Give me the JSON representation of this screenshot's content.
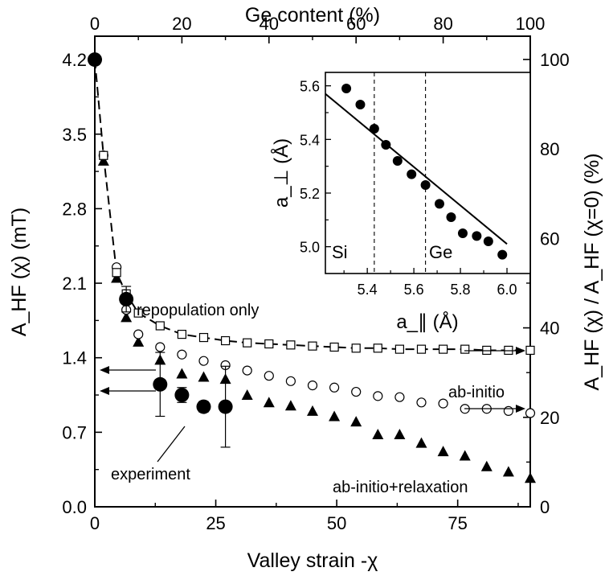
{
  "chart_data": [
    {
      "type": "scatter",
      "xlabel": "Valley strain -χ",
      "x2label": "Ge content (%)",
      "ylabel": "A_HF (χ) (mT)",
      "y2label": "A_HF (χ) / A_HF (χ=0) (%)",
      "xlim": [
        0,
        90
      ],
      "ylim": [
        0,
        4.42
      ],
      "x2lim": [
        0,
        100
      ],
      "y2lim": [
        0,
        105.2
      ],
      "x_ticks": [
        0,
        25,
        50,
        75
      ],
      "x_tick_labels": [
        "0",
        "25",
        "50",
        "75"
      ],
      "y_ticks": [
        0,
        0.7,
        1.4,
        2.1,
        2.8,
        3.5,
        4.2
      ],
      "y_tick_labels": [
        "0.0",
        "0.7",
        "1.4",
        "2.1",
        "2.8",
        "3.5",
        "4.2"
      ],
      "x2_ticks": [
        0,
        20,
        40,
        60,
        80,
        100
      ],
      "x2_tick_labels": [
        "0",
        "20",
        "40",
        "60",
        "80",
        "100"
      ],
      "y2_ticks": [
        0,
        20,
        40,
        60,
        80,
        100
      ],
      "y2_tick_labels": [
        "0",
        "20",
        "40",
        "60",
        "80",
        "100"
      ],
      "grid": false,
      "series": [
        {
          "name": "repopulation only",
          "marker": "open-square",
          "line": "dashed",
          "x": [
            0,
            1.8,
            4.5,
            6.5,
            9,
            13.5,
            18,
            22.5,
            27,
            31.5,
            36,
            40.5,
            45,
            49.5,
            54,
            58.5,
            63,
            67.5,
            72,
            76.5,
            81,
            85.5,
            90
          ],
          "y": [
            4.2,
            3.3,
            2.2,
            2.0,
            1.82,
            1.7,
            1.62,
            1.59,
            1.56,
            1.54,
            1.53,
            1.52,
            1.51,
            1.5,
            1.49,
            1.49,
            1.48,
            1.48,
            1.48,
            1.48,
            1.47,
            1.47,
            1.47
          ]
        },
        {
          "name": "ab-initio",
          "marker": "open-circle",
          "x": [
            0,
            1.8,
            4.5,
            6.5,
            9,
            13.5,
            18,
            22.5,
            27,
            31.5,
            36,
            40.5,
            45,
            49.5,
            54,
            58.5,
            63,
            67.5,
            72,
            76.5,
            81,
            85.5,
            90
          ],
          "y": [
            4.2,
            3.3,
            2.25,
            1.85,
            1.62,
            1.5,
            1.43,
            1.37,
            1.33,
            1.28,
            1.23,
            1.18,
            1.14,
            1.12,
            1.08,
            1.04,
            1.03,
            0.98,
            0.97,
            0.92,
            0.92,
            0.9,
            0.88
          ]
        },
        {
          "name": "ab-initio+relaxation",
          "marker": "filled-triangle",
          "x": [
            0,
            1.8,
            4.5,
            6.5,
            9,
            13.5,
            18,
            22.5,
            27,
            31.5,
            36,
            40.5,
            45,
            49.5,
            54,
            58.5,
            63,
            67.5,
            72,
            76.5,
            81,
            85.5,
            90
          ],
          "y": [
            4.2,
            3.25,
            2.15,
            1.78,
            1.55,
            1.38,
            1.25,
            1.22,
            1.2,
            1.05,
            0.98,
            0.95,
            0.9,
            0.85,
            0.8,
            0.68,
            0.68,
            0.6,
            0.52,
            0.48,
            0.38,
            0.33,
            0.27
          ]
        },
        {
          "name": "experiment",
          "marker": "filled-circle",
          "x": [
            0,
            6.5,
            13.5,
            18,
            22.5,
            27
          ],
          "y": [
            4.2,
            1.95,
            1.15,
            1.05,
            0.94,
            0.94
          ],
          "error": [
            0,
            0.12,
            0.3,
            0.07,
            0.05,
            0.38
          ]
        }
      ],
      "annotations": [
        "repopulation only",
        "ab-initio",
        "experiment",
        "ab-initio+relaxation"
      ]
    },
    {
      "type": "scatter",
      "xlabel": "a_∥ (Å)",
      "ylabel": "a_⊥ (Å)",
      "xlim": [
        5.22,
        6.1
      ],
      "ylim": [
        4.9,
        5.65
      ],
      "x_ticks": [
        5.4,
        5.6,
        5.8,
        6.0
      ],
      "x_tick_labels": [
        "5.4",
        "5.6",
        "5.8",
        "6.0"
      ],
      "y_ticks": [
        5.0,
        5.2,
        5.4,
        5.6
      ],
      "y_tick_labels": [
        "5.0",
        "5.2",
        "5.4",
        "5.6"
      ],
      "series": [
        {
          "marker": "filled-circle",
          "x": [
            5.31,
            5.37,
            5.43,
            5.48,
            5.53,
            5.59,
            5.65,
            5.71,
            5.76,
            5.81,
            5.87,
            5.92,
            5.98
          ],
          "y": [
            5.59,
            5.53,
            5.44,
            5.38,
            5.32,
            5.27,
            5.23,
            5.16,
            5.11,
            5.05,
            5.04,
            5.02,
            4.97
          ]
        }
      ],
      "fit_line": {
        "x": [
          5.22,
          6.0
        ],
        "y": [
          5.57,
          5.01
        ]
      },
      "reference_lines": [
        {
          "label": "Si",
          "x": 5.43
        },
        {
          "label": "Ge",
          "x": 5.65
        }
      ]
    }
  ]
}
